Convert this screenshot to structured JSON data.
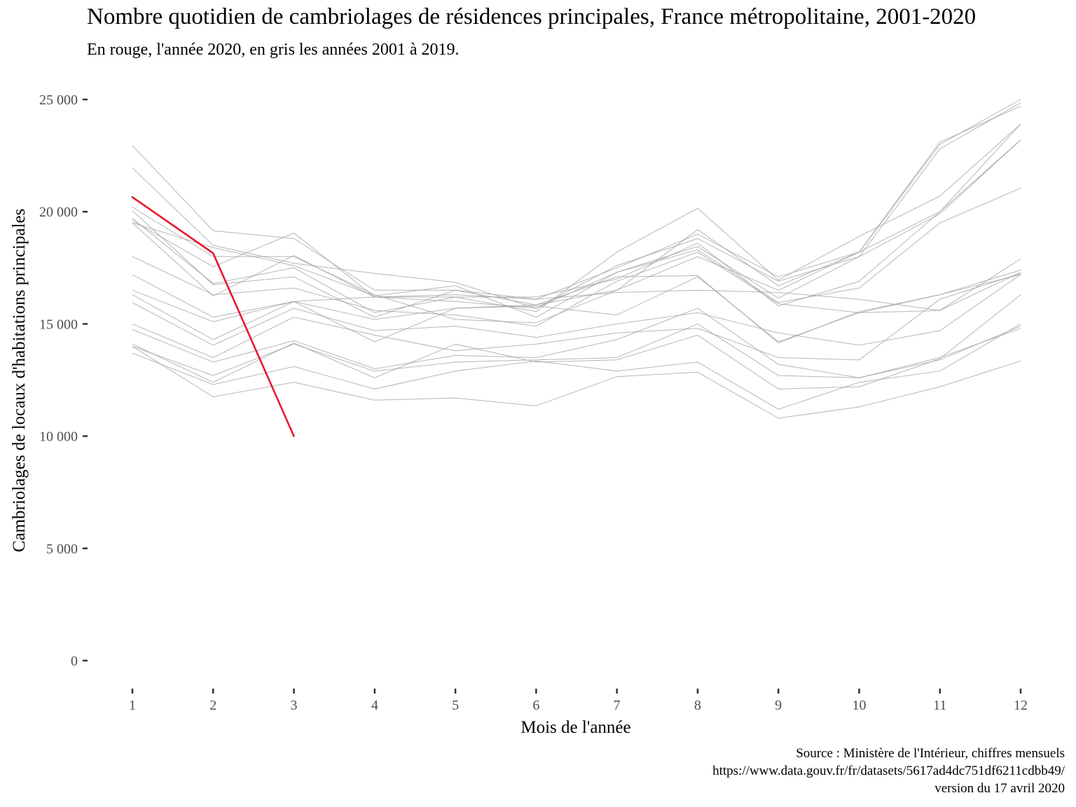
{
  "title": "Nombre quotidien de cambriolages de résidences principales, France métropolitaine, 2001-2020",
  "subtitle": "En rouge, l'année 2020, en gris les années 2001 à 2019.",
  "caption": {
    "line1": "Source : Ministère de l'Intérieur, chiffres mensuels",
    "line2": "https://www.data.gouv.fr/fr/datasets/5617ad4dc751df6211cdbb49/",
    "line3": "version du 17 avril 2020"
  },
  "colors": {
    "highlight": "#e8192c",
    "background_series": "#9e9e9e"
  },
  "chart_data": {
    "type": "line",
    "xlabel": "Mois de l'année",
    "ylabel": "Cambriolages de locaux d'habitations principales",
    "x": [
      1,
      2,
      3,
      4,
      5,
      6,
      7,
      8,
      9,
      10,
      11,
      12
    ],
    "ylim": [
      0,
      25000
    ],
    "yticks": [
      0,
      5000,
      10000,
      15000,
      20000,
      25000
    ],
    "ytick_labels": [
      "0",
      "5 000",
      "10 000",
      "15 000",
      "20 000",
      "25 000"
    ],
    "grid": false,
    "legend": "none",
    "highlight": {
      "name": "2020",
      "values": [
        20650,
        18150,
        10000
      ]
    },
    "series": [
      {
        "values": [
          22950,
          19150,
          18800,
          16500,
          16500,
          16100,
          17500,
          19000,
          17100,
          18200,
          23000,
          25000
        ]
      },
      {
        "values": [
          21950,
          18500,
          17700,
          17250,
          16850,
          15700,
          17600,
          18800,
          16900,
          18000,
          22800,
          24850
        ]
      },
      {
        "values": [
          20200,
          18000,
          18000,
          16300,
          15200,
          15050,
          16500,
          18000,
          16500,
          18200,
          23100,
          24700
        ]
      },
      {
        "values": [
          19600,
          17550,
          19050,
          16200,
          16200,
          15550,
          18200,
          20150,
          16950,
          18900,
          20700,
          23900
        ]
      },
      {
        "values": [
          20050,
          16750,
          17100,
          15300,
          16500,
          15850,
          16500,
          19200,
          16700,
          18200,
          20000,
          23900
        ]
      },
      {
        "values": [
          19700,
          16800,
          17500,
          15500,
          16200,
          16200,
          17000,
          18600,
          15800,
          16900,
          20000,
          23200
        ]
      },
      {
        "values": [
          19500,
          16250,
          18050,
          16200,
          16000,
          15700,
          17300,
          18450,
          16150,
          18000,
          19900,
          23200
        ]
      },
      {
        "values": [
          19500,
          18400,
          17600,
          16250,
          16700,
          15300,
          17300,
          18300,
          15950,
          16600,
          19500,
          21050
        ]
      },
      {
        "values": [
          18000,
          16300,
          16600,
          15600,
          15400,
          14900,
          16900,
          18200,
          15900,
          15500,
          15600,
          17900
        ]
      },
      {
        "values": [
          17200,
          15300,
          16000,
          16200,
          16300,
          16100,
          16400,
          16500,
          16400,
          16100,
          15600,
          17300
        ]
      },
      {
        "values": [
          16500,
          15100,
          16000,
          15200,
          15700,
          15800,
          15400,
          17100,
          14200,
          15500,
          16300,
          17200
        ]
      },
      {
        "values": [
          16300,
          14300,
          16000,
          14200,
          15700,
          15850,
          17100,
          17150,
          14150,
          15550,
          16300,
          17400
        ]
      },
      {
        "values": [
          15950,
          14050,
          15700,
          14700,
          14900,
          14400,
          15000,
          15500,
          14600,
          14050,
          14700,
          17200
        ]
      },
      {
        "values": [
          15000,
          13500,
          15300,
          14500,
          13800,
          14100,
          14600,
          14800,
          13500,
          13400,
          16100,
          17250
        ]
      },
      {
        "values": [
          14750,
          13300,
          14250,
          13000,
          13600,
          13500,
          14300,
          15700,
          13200,
          12600,
          13400,
          14900
        ]
      },
      {
        "values": [
          14000,
          12700,
          14100,
          12900,
          13300,
          13400,
          13500,
          15000,
          12700,
          12600,
          13500,
          14800
        ]
      },
      {
        "values": [
          14100,
          12400,
          14150,
          12600,
          14100,
          13300,
          13400,
          14500,
          12100,
          12200,
          13450,
          16300
        ]
      },
      {
        "values": [
          13700,
          12300,
          13100,
          12100,
          12900,
          13350,
          12900,
          13300,
          11200,
          12400,
          12900,
          15000
        ]
      },
      {
        "values": [
          14000,
          11750,
          12400,
          11600,
          11700,
          11350,
          12650,
          12850,
          10800,
          11300,
          12200,
          13350
        ]
      }
    ]
  }
}
